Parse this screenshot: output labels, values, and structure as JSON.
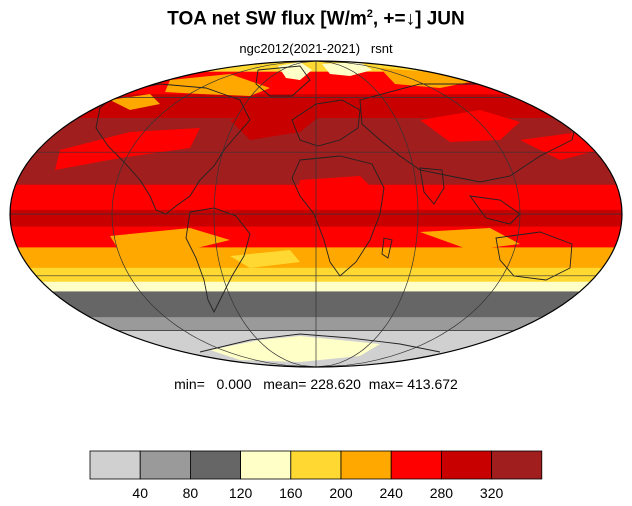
{
  "title": {
    "prefix": "TOA net SW flux [W/m",
    "superscript": "2",
    "suffix": ", +=↓]  JUN"
  },
  "subtitle": "ngc2012(2021-2021)   rsnt",
  "stats": {
    "text": "min=   0.000   mean= 228.620  max= 413.672",
    "min": 0.0,
    "mean": 228.62,
    "max": 413.672
  },
  "projection": "mollweide",
  "month": "JUN",
  "colors": {
    "ocean_land_coast": "#222222",
    "grid": "#333333"
  },
  "colorbar": {
    "levels": [
      "40",
      "80",
      "120",
      "160",
      "200",
      "240",
      "280",
      "320"
    ],
    "colors": [
      "#d0d0d0",
      "#9a9a9a",
      "#666666",
      "#ffffc8",
      "#ffd832",
      "#ffa800",
      "#ff0000",
      "#c80000",
      "#a01e1e"
    ]
  },
  "zonal_bands": [
    {
      "lat_top": 90,
      "lat_bottom": 78,
      "color": "#ffd832"
    },
    {
      "lat_top": 78,
      "lat_bottom": 62,
      "color": "#ff0000"
    },
    {
      "lat_top": 62,
      "lat_bottom": 48,
      "color": "#c80000"
    },
    {
      "lat_top": 48,
      "lat_bottom": 14,
      "color": "#a01e1e"
    },
    {
      "lat_top": 14,
      "lat_bottom": 2,
      "color": "#ff0000"
    },
    {
      "lat_top": 2,
      "lat_bottom": -6,
      "color": "#c80000"
    },
    {
      "lat_top": -6,
      "lat_bottom": -16,
      "color": "#ff0000"
    },
    {
      "lat_top": -16,
      "lat_bottom": -26,
      "color": "#ffa800"
    },
    {
      "lat_top": -26,
      "lat_bottom": -33,
      "color": "#ffd832"
    },
    {
      "lat_top": -33,
      "lat_bottom": -38,
      "color": "#ffffc8"
    },
    {
      "lat_top": -38,
      "lat_bottom": -52,
      "color": "#666666"
    },
    {
      "lat_top": -52,
      "lat_bottom": -60,
      "color": "#9a9a9a"
    },
    {
      "lat_top": -60,
      "lat_bottom": -90,
      "color": "#d0d0d0"
    }
  ]
}
